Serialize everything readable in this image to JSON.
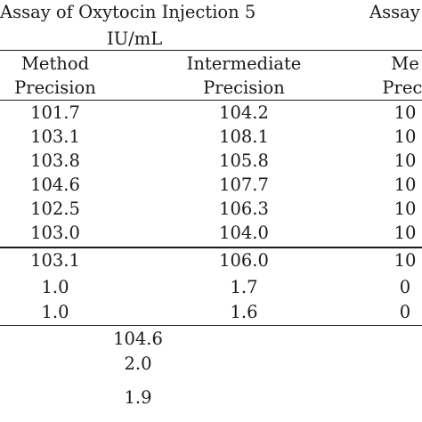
{
  "header": {
    "group1_title_line1": "Assay of Oxytocin Injection 5",
    "group1_title_line2": "IU/mL",
    "group2_title": "Assay"
  },
  "columns": {
    "method_line1": "Method",
    "method_line2": "Precision",
    "intermediate_line1": "Intermediate",
    "intermediate_line2": "Precision",
    "col3_line1": "Me",
    "col3_line2": "Preci"
  },
  "rows": [
    {
      "method": "101.7",
      "intermediate": "104.2",
      "col3": "10"
    },
    {
      "method": "103.1",
      "intermediate": "108.1",
      "col3": "10"
    },
    {
      "method": "103.8",
      "intermediate": "105.8",
      "col3": "10"
    },
    {
      "method": "104.6",
      "intermediate": "107.7",
      "col3": "10"
    },
    {
      "method": "102.5",
      "intermediate": "106.3",
      "col3": "10"
    },
    {
      "method": "103.0",
      "intermediate": "104.0",
      "col3": "10"
    }
  ],
  "summary": [
    {
      "method": "103.1",
      "intermediate": "106.0",
      "col3": "10"
    },
    {
      "method": "1.0",
      "intermediate": "1.7",
      "col3": "0"
    },
    {
      "method": "1.0",
      "intermediate": "1.6",
      "col3": "0"
    }
  ],
  "overall": [
    "104.6",
    "2.0",
    "1.9"
  ]
}
